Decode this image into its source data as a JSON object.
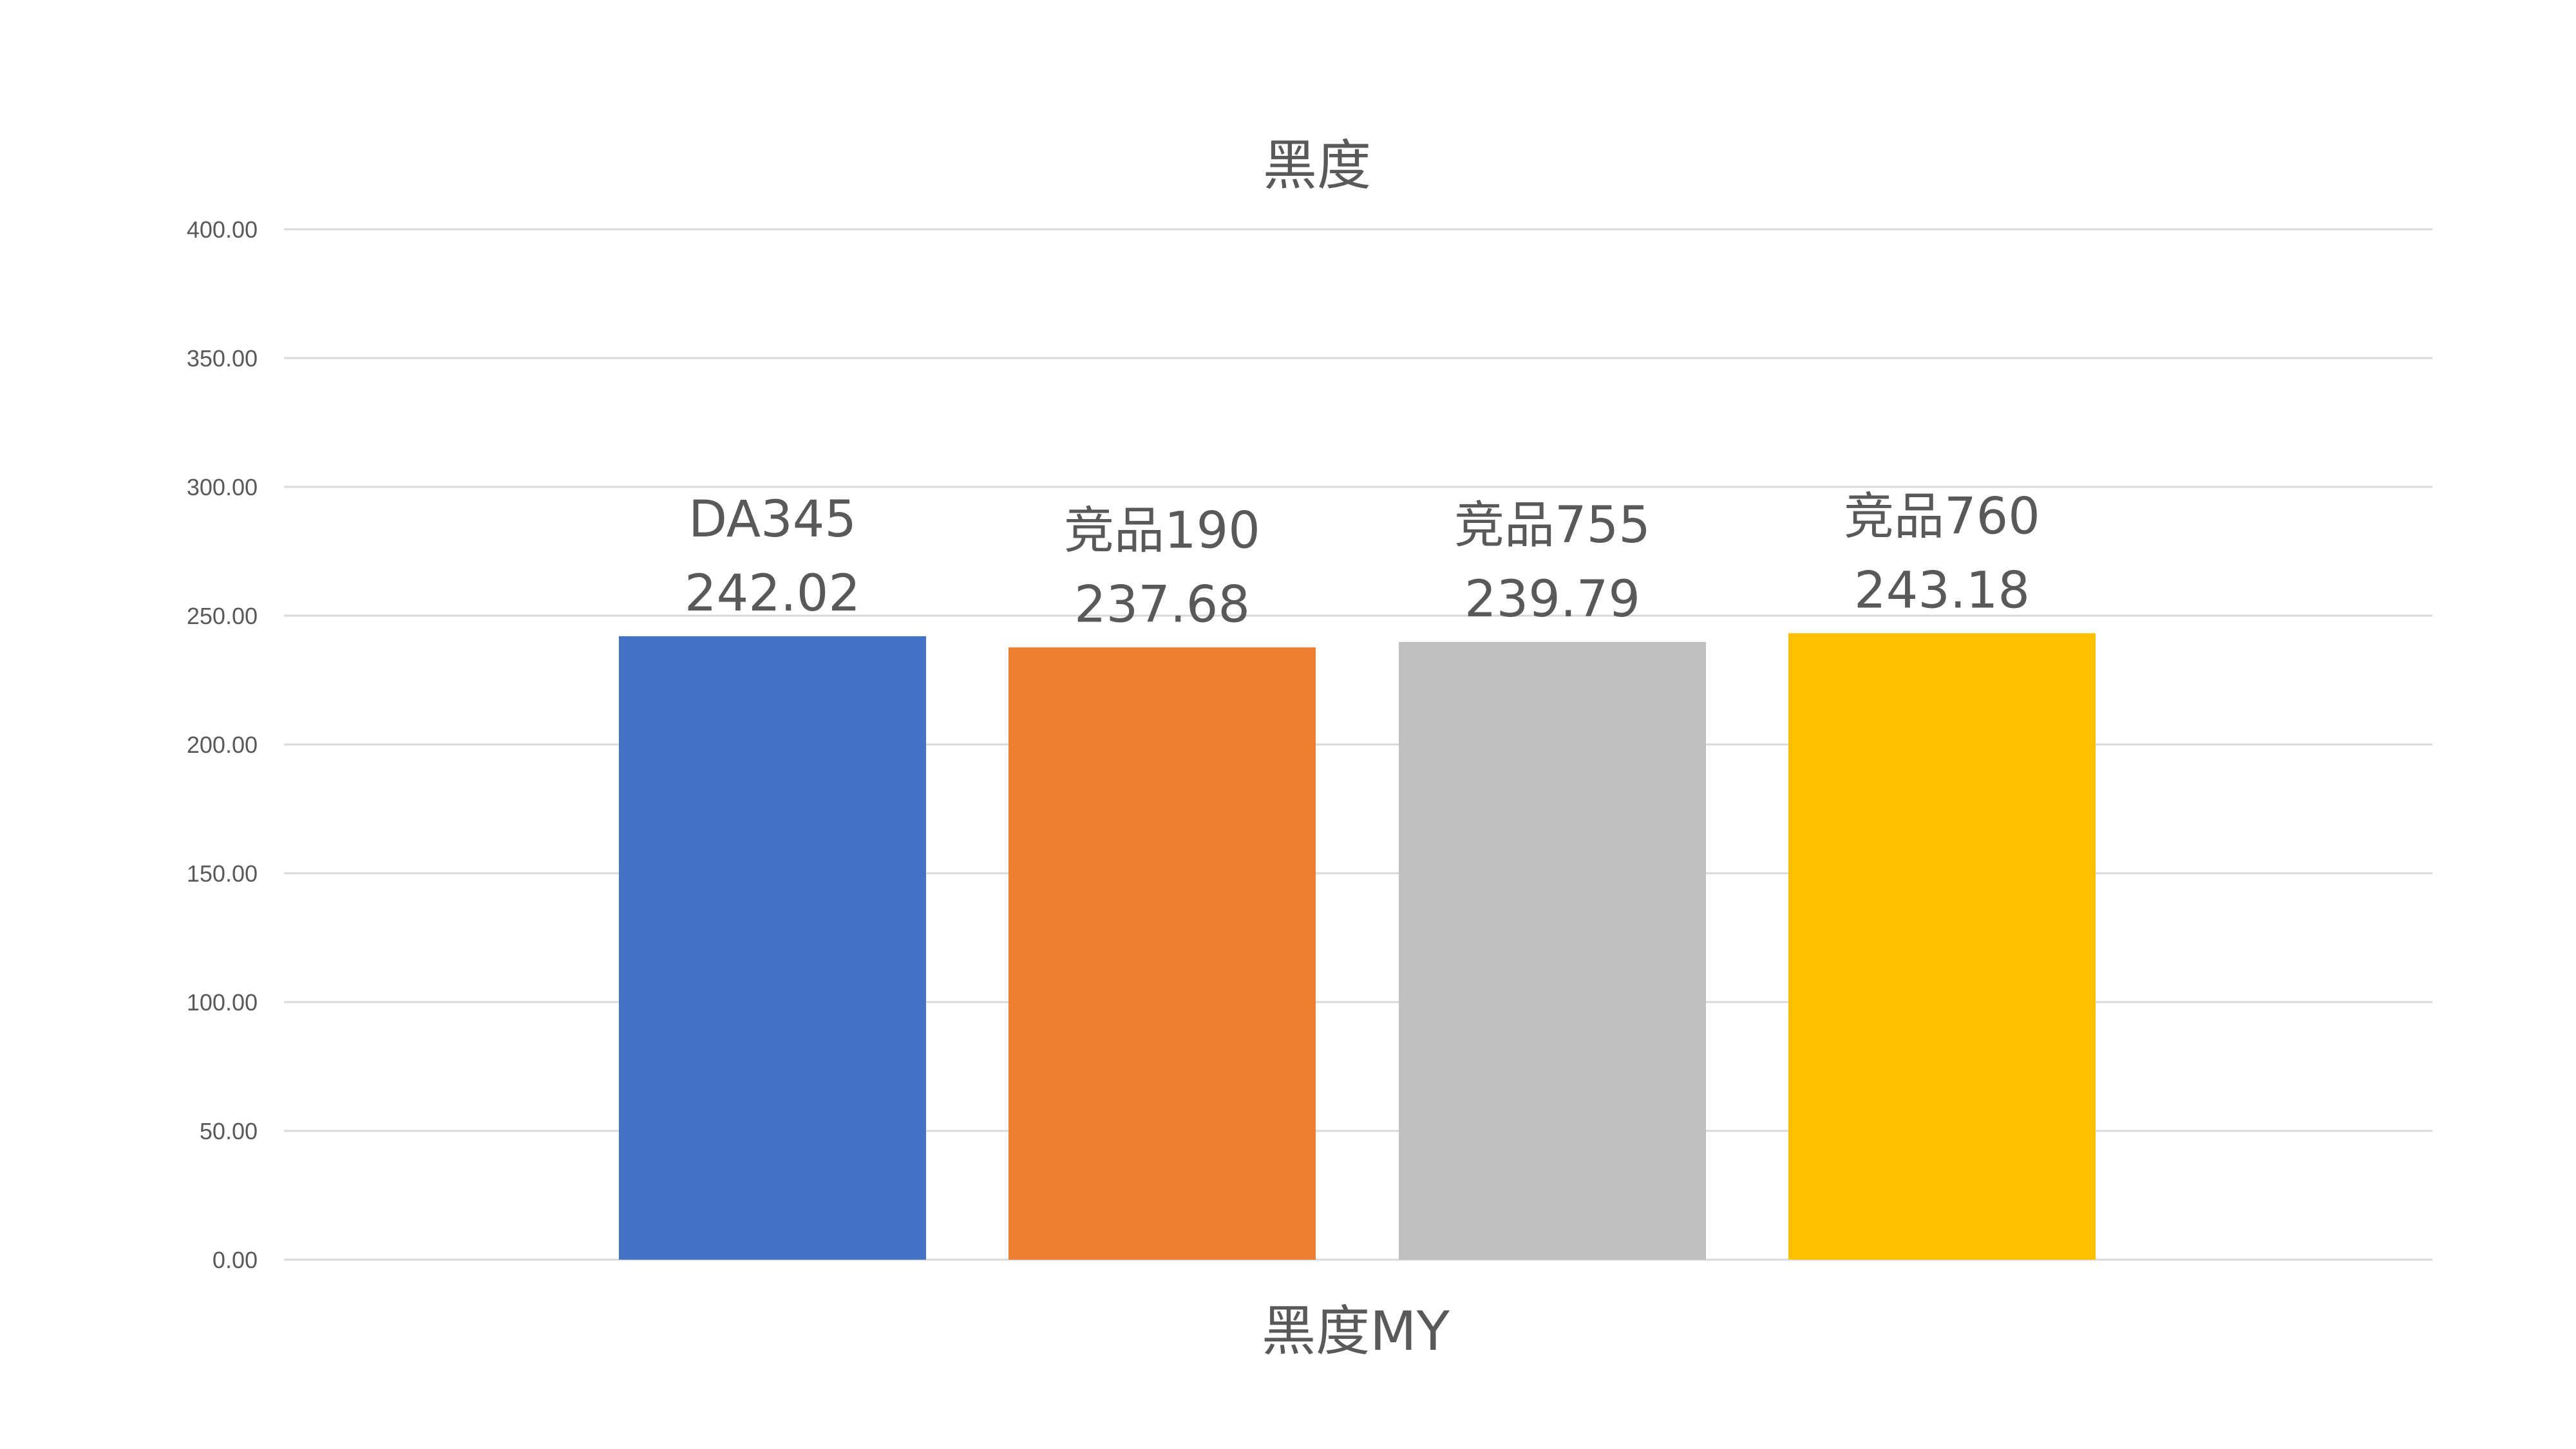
{
  "chart_data": {
    "type": "bar",
    "title": "黑度",
    "xlabel": "黑度MY",
    "ylabel": "",
    "ylim": [
      0,
      400
    ],
    "yticks": [
      "0.00",
      "50.00",
      "100.00",
      "150.00",
      "200.00",
      "250.00",
      "300.00",
      "350.00",
      "400.00"
    ],
    "grid": true,
    "legend": "none",
    "series": [
      {
        "name": "DA345",
        "value": 242.02,
        "value_label": "242.02",
        "color": "#4472C4"
      },
      {
        "name": "竞品190",
        "value": 237.68,
        "value_label": "237.68",
        "color": "#ED7D31"
      },
      {
        "name": "竞品755",
        "value": 239.79,
        "value_label": "239.79",
        "color": "#BFBFBF"
      },
      {
        "name": "竞品760",
        "value": 243.18,
        "value_label": "243.18",
        "color": "#FFC000"
      }
    ]
  }
}
